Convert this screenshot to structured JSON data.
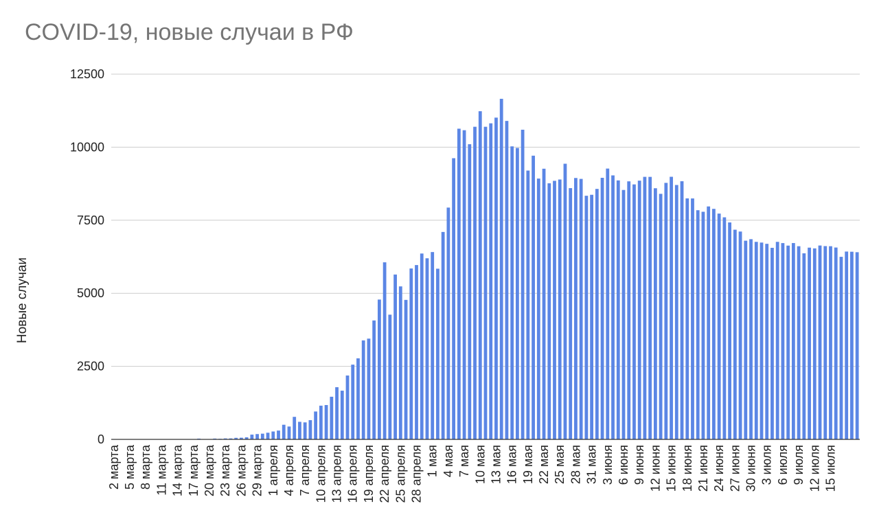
{
  "chart_data": {
    "type": "bar",
    "title": "COVID-19, новые случаи в РФ",
    "ylabel": "Новые случаи",
    "xlabel": "",
    "ylim": [
      0,
      12500
    ],
    "yticks": [
      "0",
      "2500",
      "5000",
      "7500",
      "10000",
      "12500"
    ],
    "grid": true,
    "bar_color": "#5b86e5",
    "start_date": "2 марта",
    "x_tick_labels": [
      "2 марта",
      "5 марта",
      "8 марта",
      "11 марта",
      "14 марта",
      "17 марта",
      "20 марта",
      "23 марта",
      "26 марта",
      "29 марта",
      "1 апреля",
      "4 апреля",
      "7 апреля",
      "10 апреля",
      "13 апреля",
      "16 апреля",
      "19 апреля",
      "22 апреля",
      "25 апреля",
      "28 апреля",
      "1 мая",
      "4 мая",
      "7 мая",
      "10 мая",
      "13 мая",
      "16 мая",
      "19 мая",
      "22 мая",
      "25 мая",
      "28 мая",
      "31 мая",
      "3 июня",
      "6 июня",
      "9 июня",
      "12 июня",
      "15 июня",
      "18 июня",
      "21 июня",
      "24 июня",
      "27 июня",
      "30 июня",
      "3 июля",
      "6 июля",
      "9 июля",
      "12 июля",
      "15 июля"
    ],
    "series": [
      {
        "values": [
          1,
          0,
          0,
          0,
          0,
          1,
          0,
          0,
          3,
          0,
          0,
          0,
          4,
          0,
          0,
          0,
          26,
          0,
          9,
          28,
          20,
          33,
          33,
          53,
          57,
          71,
          163,
          182,
          196,
          228,
          270,
          302,
          501,
          440,
          771,
          601,
          582,
          658,
          954,
          1154,
          1175,
          1459,
          1786,
          1667,
          2186,
          2558,
          2774,
          3388,
          3448,
          4070,
          4785,
          6060,
          4268,
          5642,
          5236,
          4774,
          5849,
          5966,
          6361,
          6198,
          6411,
          5841,
          7099,
          7933,
          9623,
          10633,
          10581,
          10102,
          10699,
          11231,
          10699,
          10817,
          11012,
          11656,
          10899,
          10028,
          9974,
          10598,
          9200,
          9709,
          8926,
          9263,
          8764,
          8849,
          8894,
          9434,
          8599,
          8946,
          8915,
          8338,
          8371,
          8572,
          8952,
          9268,
          9035,
          8863,
          8536,
          8831,
          8726,
          8855,
          8985,
          8984,
          8595,
          8404,
          8779,
          8987,
          8706,
          8835,
          8248,
          8246,
          7843,
          7790,
          7972,
          7889,
          7728,
          7600,
          7425,
          7176,
          7113,
          6800,
          6852,
          6760,
          6736,
          6693,
          6556,
          6760,
          6718,
          6632,
          6719,
          6611,
          6368,
          6562,
          6537,
          6635,
          6615,
          6611,
          6566,
          6248,
          6428,
          6422,
          6406
        ]
      }
    ]
  }
}
